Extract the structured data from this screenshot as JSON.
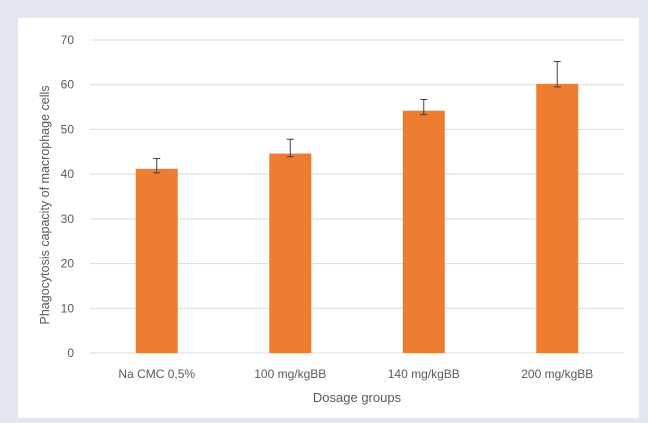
{
  "chart_data": {
    "type": "bar",
    "title": "",
    "xlabel": "Dosage groups",
    "ylabel": "Phagocytosis capacity of macrophage cells",
    "categories": [
      "Na CMC 0,5%",
      "100 mg/kgBB",
      "140 mg/kgBB",
      "200 mg/kgBB"
    ],
    "values": [
      41.2,
      44.6,
      54.2,
      60.2
    ],
    "error_bars": [
      {
        "low": 40.3,
        "high": 43.5
      },
      {
        "low": 43.9,
        "high": 47.8
      },
      {
        "low": 53.3,
        "high": 56.7
      },
      {
        "low": 59.5,
        "high": 65.2
      }
    ],
    "ylim": [
      0,
      70
    ],
    "yticks": [
      0,
      10,
      20,
      30,
      40,
      50,
      60,
      70
    ],
    "grid": true,
    "legend": "none",
    "colors": {
      "bar": "#ed7d31",
      "error_bar": "#404040",
      "grid": "#d9d9d9",
      "text": "#595959",
      "background": "#e3e7f1"
    }
  }
}
